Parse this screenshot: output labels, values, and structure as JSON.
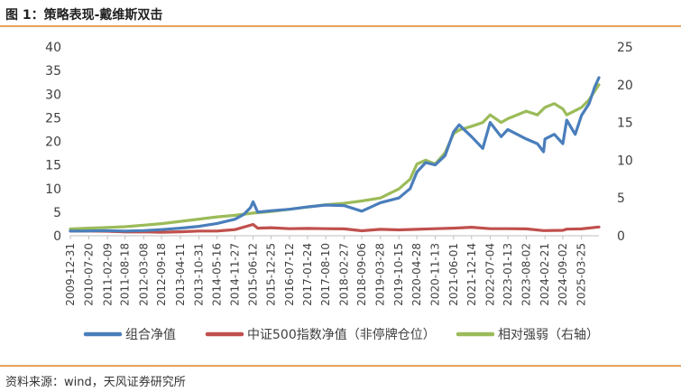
{
  "header": {
    "title": "图 1：策略表现-戴维斯双击"
  },
  "footer": {
    "source": "资料来源：wind，天风证券研究所"
  },
  "chart_data": {
    "type": "line",
    "x_start": "2009-12-31",
    "x_end": "2025-09-30",
    "categories": [
      "2009-12-31",
      "2010-07-20",
      "2011-02-09",
      "2011-08-18",
      "2012-03-08",
      "2012-09-18",
      "2013-04-11",
      "2013-10-31",
      "2014-05-16",
      "2014-11-27",
      "2015-06-12",
      "2015-12-25",
      "2016-07-12",
      "2017-01-24",
      "2017-08-10",
      "2018-02-27",
      "2018-09-06",
      "2019-03-28",
      "2019-10-15",
      "2020-04-28",
      "2020-11-13",
      "2021-06-01",
      "2021-12-14",
      "2022-07-04",
      "2023-01-13",
      "2023-08-02",
      "2024-02-21",
      "2024-09-02",
      "2025-03-25"
    ],
    "y_left": {
      "min": 0,
      "max": 40,
      "ticks": [
        0,
        5,
        10,
        15,
        20,
        25,
        30,
        35,
        40
      ]
    },
    "y_right": {
      "min": 0,
      "max": 25,
      "ticks": [
        0,
        5,
        10,
        15,
        20,
        25
      ]
    },
    "grid": false,
    "legend_position": "bottom",
    "series": [
      {
        "name": "组合净值",
        "axis": "left",
        "color": "#4A7EBB",
        "points": [
          [
            "2009-12-31",
            1.0
          ],
          [
            "2010-06-01",
            1.0
          ],
          [
            "2011-01-01",
            1.1
          ],
          [
            "2011-08-18",
            1.0
          ],
          [
            "2012-03-08",
            1.1
          ],
          [
            "2012-09-18",
            1.3
          ],
          [
            "2013-04-11",
            1.6
          ],
          [
            "2013-10-31",
            2.0
          ],
          [
            "2014-05-16",
            2.6
          ],
          [
            "2014-11-27",
            3.5
          ],
          [
            "2015-03-01",
            4.5
          ],
          [
            "2015-05-15",
            6.0
          ],
          [
            "2015-06-12",
            7.2
          ],
          [
            "2015-08-01",
            5.0
          ],
          [
            "2015-12-25",
            5.3
          ],
          [
            "2016-07-12",
            5.6
          ],
          [
            "2017-01-24",
            6.1
          ],
          [
            "2017-08-10",
            6.5
          ],
          [
            "2018-02-27",
            6.4
          ],
          [
            "2018-09-06",
            5.2
          ],
          [
            "2019-03-28",
            7.0
          ],
          [
            "2019-10-15",
            8.0
          ],
          [
            "2020-02-15",
            10.0
          ],
          [
            "2020-04-28",
            13.5
          ],
          [
            "2020-08-01",
            15.5
          ],
          [
            "2020-11-13",
            15.0
          ],
          [
            "2021-03-01",
            17.0
          ],
          [
            "2021-06-01",
            22.0
          ],
          [
            "2021-08-01",
            23.5
          ],
          [
            "2021-12-14",
            21.0
          ],
          [
            "2022-04-15",
            18.5
          ],
          [
            "2022-07-04",
            24.0
          ],
          [
            "2022-11-01",
            21.0
          ],
          [
            "2023-01-13",
            22.5
          ],
          [
            "2023-08-02",
            20.5
          ],
          [
            "2023-12-01",
            19.5
          ],
          [
            "2024-02-05",
            17.8
          ],
          [
            "2024-02-21",
            20.5
          ],
          [
            "2024-06-01",
            21.5
          ],
          [
            "2024-09-02",
            19.5
          ],
          [
            "2024-10-15",
            24.5
          ],
          [
            "2025-01-15",
            21.5
          ],
          [
            "2025-03-25",
            25.5
          ],
          [
            "2025-06-15",
            28.0
          ],
          [
            "2025-08-15",
            31.5
          ],
          [
            "2025-09-30",
            33.5
          ]
        ]
      },
      {
        "name": "中证500指数净值（非停牌仓位）",
        "axis": "left",
        "color": "#C0504D",
        "points": [
          [
            "2009-12-31",
            1.0
          ],
          [
            "2010-07-20",
            1.0
          ],
          [
            "2011-02-09",
            0.95
          ],
          [
            "2011-08-18",
            0.8
          ],
          [
            "2012-03-08",
            0.85
          ],
          [
            "2012-09-18",
            0.75
          ],
          [
            "2013-04-11",
            0.85
          ],
          [
            "2013-10-31",
            1.0
          ],
          [
            "2014-05-16",
            1.0
          ],
          [
            "2014-11-27",
            1.3
          ],
          [
            "2015-06-12",
            2.4
          ],
          [
            "2015-08-01",
            1.6
          ],
          [
            "2015-12-25",
            1.7
          ],
          [
            "2016-07-12",
            1.5
          ],
          [
            "2017-01-24",
            1.55
          ],
          [
            "2017-08-10",
            1.5
          ],
          [
            "2018-02-27",
            1.45
          ],
          [
            "2018-09-06",
            1.05
          ],
          [
            "2019-03-28",
            1.35
          ],
          [
            "2019-10-15",
            1.25
          ],
          [
            "2020-04-28",
            1.35
          ],
          [
            "2020-11-13",
            1.5
          ],
          [
            "2021-06-01",
            1.6
          ],
          [
            "2021-12-14",
            1.8
          ],
          [
            "2022-07-04",
            1.5
          ],
          [
            "2023-01-13",
            1.5
          ],
          [
            "2023-08-02",
            1.45
          ],
          [
            "2024-02-05",
            1.1
          ],
          [
            "2024-09-02",
            1.15
          ],
          [
            "2024-10-15",
            1.4
          ],
          [
            "2025-03-25",
            1.45
          ],
          [
            "2025-09-30",
            1.85
          ]
        ]
      },
      {
        "name": "相对强弱（右轴）",
        "axis": "right",
        "color": "#9BBB59",
        "points": [
          [
            "2009-12-31",
            0.9
          ],
          [
            "2010-07-20",
            1.0
          ],
          [
            "2011-02-09",
            1.1
          ],
          [
            "2011-08-18",
            1.2
          ],
          [
            "2012-03-08",
            1.4
          ],
          [
            "2012-09-18",
            1.6
          ],
          [
            "2013-04-11",
            1.9
          ],
          [
            "2013-10-31",
            2.2
          ],
          [
            "2014-05-16",
            2.5
          ],
          [
            "2014-11-27",
            2.7
          ],
          [
            "2015-06-12",
            3.0
          ],
          [
            "2015-12-25",
            3.2
          ],
          [
            "2016-07-12",
            3.5
          ],
          [
            "2017-01-24",
            3.8
          ],
          [
            "2017-08-10",
            4.1
          ],
          [
            "2018-02-27",
            4.3
          ],
          [
            "2018-09-06",
            4.6
          ],
          [
            "2019-03-28",
            5.0
          ],
          [
            "2019-10-15",
            6.2
          ],
          [
            "2020-02-15",
            7.5
          ],
          [
            "2020-04-28",
            9.5
          ],
          [
            "2020-08-01",
            10.0
          ],
          [
            "2020-11-13",
            9.5
          ],
          [
            "2021-03-01",
            11.0
          ],
          [
            "2021-06-01",
            13.5
          ],
          [
            "2021-08-01",
            14.0
          ],
          [
            "2021-12-14",
            14.5
          ],
          [
            "2022-04-15",
            15.0
          ],
          [
            "2022-07-04",
            16.0
          ],
          [
            "2022-11-01",
            15.0
          ],
          [
            "2023-01-13",
            15.5
          ],
          [
            "2023-08-02",
            16.5
          ],
          [
            "2023-12-01",
            16.0
          ],
          [
            "2024-02-21",
            17.0
          ],
          [
            "2024-06-01",
            17.5
          ],
          [
            "2024-09-02",
            16.8
          ],
          [
            "2024-10-15",
            16.0
          ],
          [
            "2025-03-25",
            17.0
          ],
          [
            "2025-06-15",
            18.0
          ],
          [
            "2025-09-30",
            20.0
          ]
        ]
      }
    ]
  }
}
